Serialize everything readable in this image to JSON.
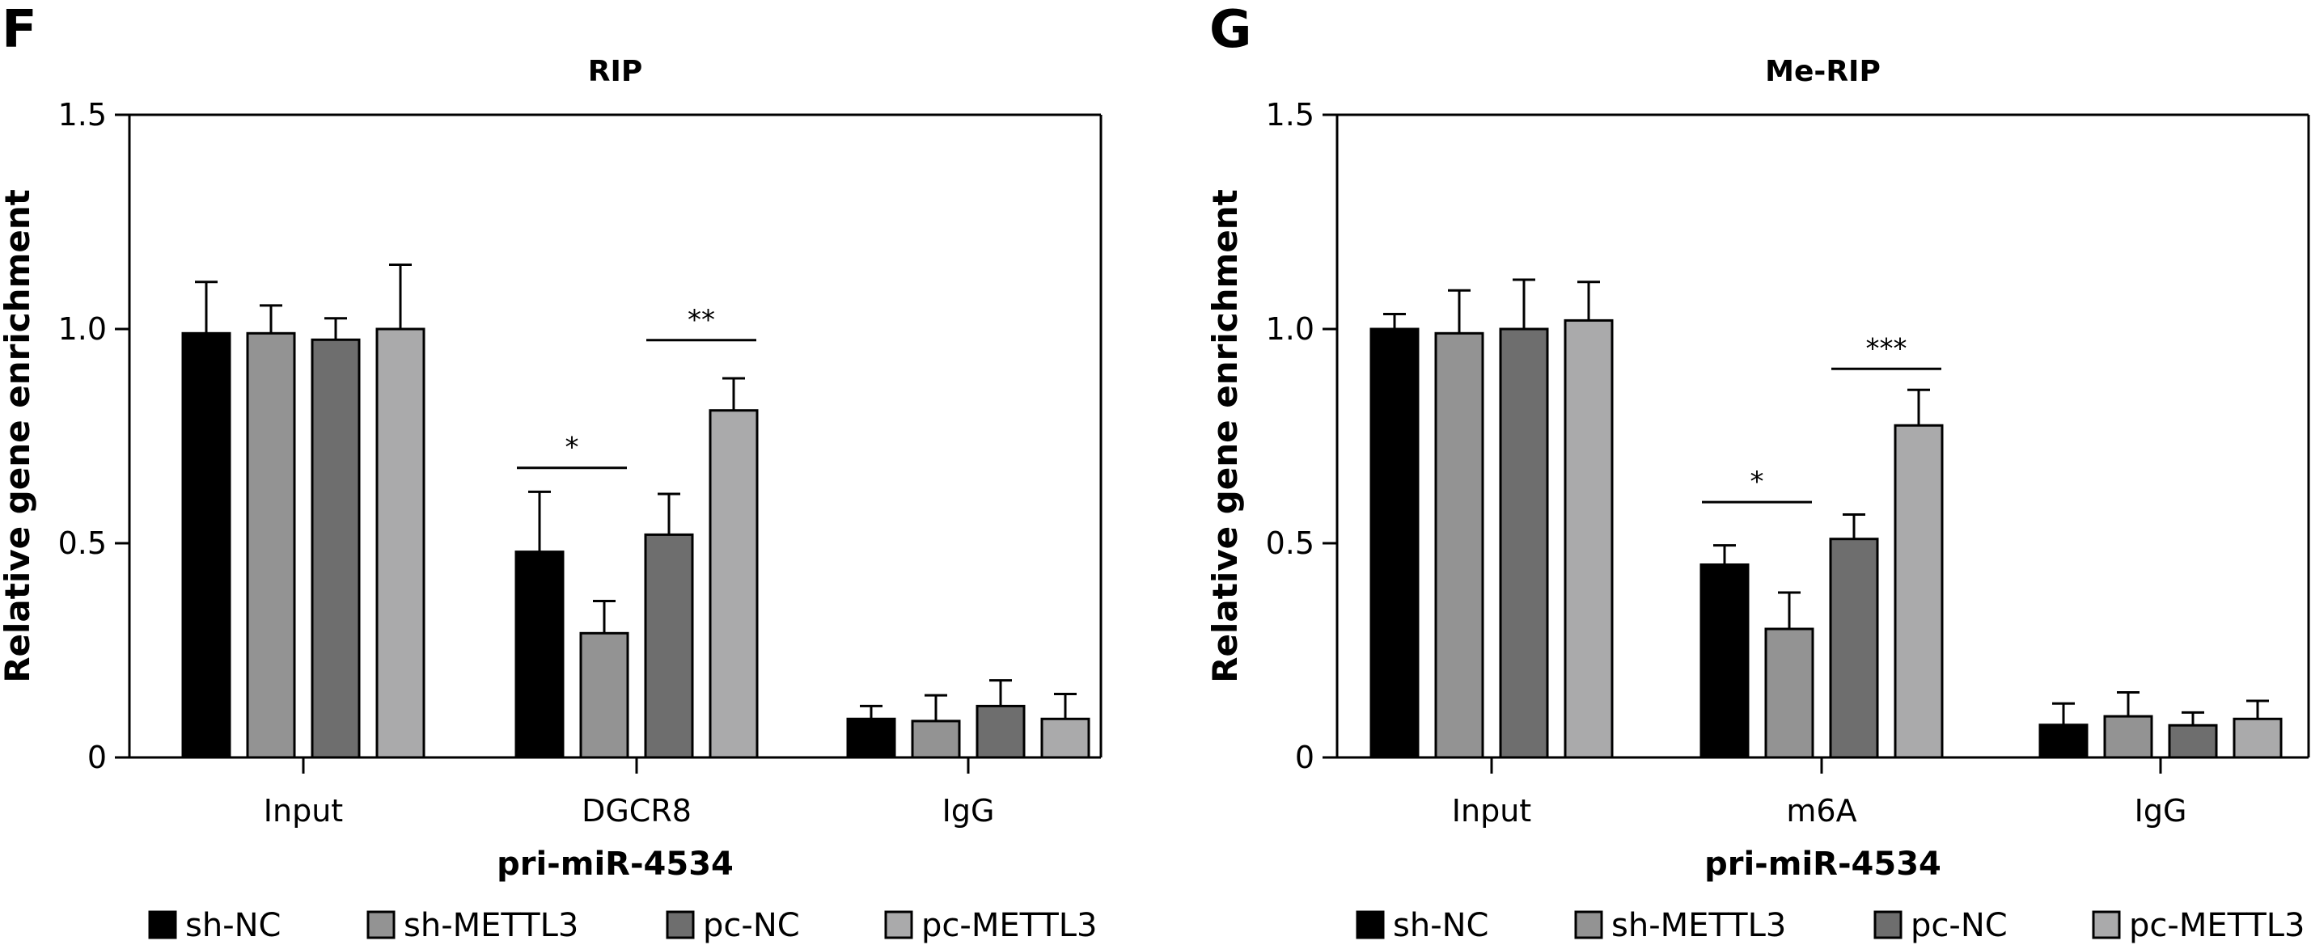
{
  "colors": {
    "sh-NC": "#000000",
    "sh-METTL3": "#939393",
    "pc-NC": "#6e6e6e",
    "pc-METTL3": "#aaaaab"
  },
  "chart_data": [
    {
      "panel_label": "F",
      "type": "bar",
      "title": "RIP",
      "xlabel": "pri-miR-4534",
      "ylabel": "Relative gene enrichment",
      "ylim": [
        0,
        1.5
      ],
      "yticks": [
        0,
        0.5,
        1.0,
        1.5
      ],
      "ytick_labels": [
        "0",
        "0.5",
        "1.0",
        "1.5"
      ],
      "grid": false,
      "legend_position": "bottom",
      "categories": [
        "Input",
        "DGCR8",
        "IgG"
      ],
      "series": [
        {
          "name": "sh-NC",
          "values": [
            0.99,
            0.48,
            0.09
          ],
          "errors": [
            0.12,
            0.14,
            0.03
          ]
        },
        {
          "name": "sh-METTL3",
          "values": [
            0.99,
            0.29,
            0.085
          ],
          "errors": [
            0.065,
            0.075,
            0.06
          ]
        },
        {
          "name": "pc-NC",
          "values": [
            0.975,
            0.52,
            0.12
          ],
          "errors": [
            0.05,
            0.095,
            0.06
          ]
        },
        {
          "name": "pc-METTL3",
          "values": [
            1.0,
            0.81,
            0.09
          ],
          "errors": [
            0.15,
            0.075,
            0.058
          ]
        }
      ],
      "significance": [
        {
          "category": "DGCR8",
          "from": "sh-NC",
          "to": "sh-METTL3",
          "label": "*",
          "y": 0.676
        },
        {
          "category": "DGCR8",
          "from": "pc-NC",
          "to": "pc-METTL3",
          "label": "**",
          "y": 0.974
        }
      ]
    },
    {
      "panel_label": "G",
      "type": "bar",
      "title": "Me-RIP",
      "xlabel": "pri-miR-4534",
      "ylabel": "Relative gene enrichment",
      "ylim": [
        0,
        1.5
      ],
      "yticks": [
        0,
        0.5,
        1.0,
        1.5
      ],
      "ytick_labels": [
        "0",
        "0.5",
        "1.0",
        "1.5"
      ],
      "grid": false,
      "legend_position": "bottom",
      "categories": [
        "Input",
        "m6A",
        "IgG"
      ],
      "series": [
        {
          "name": "sh-NC",
          "values": [
            1.0,
            0.45,
            0.076
          ],
          "errors": [
            0.035,
            0.045,
            0.05
          ]
        },
        {
          "name": "sh-METTL3",
          "values": [
            0.99,
            0.3,
            0.096
          ],
          "errors": [
            0.1,
            0.085,
            0.056
          ]
        },
        {
          "name": "pc-NC",
          "values": [
            1.0,
            0.51,
            0.075
          ],
          "errors": [
            0.115,
            0.057,
            0.03
          ]
        },
        {
          "name": "pc-METTL3",
          "values": [
            1.02,
            0.775,
            0.09
          ],
          "errors": [
            0.09,
            0.083,
            0.042
          ]
        }
      ],
      "significance": [
        {
          "category": "m6A",
          "from": "sh-NC",
          "to": "sh-METTL3",
          "label": "*",
          "y": 0.596
        },
        {
          "category": "m6A",
          "from": "pc-NC",
          "to": "pc-METTL3",
          "label": "***",
          "y": 0.907
        }
      ]
    }
  ]
}
